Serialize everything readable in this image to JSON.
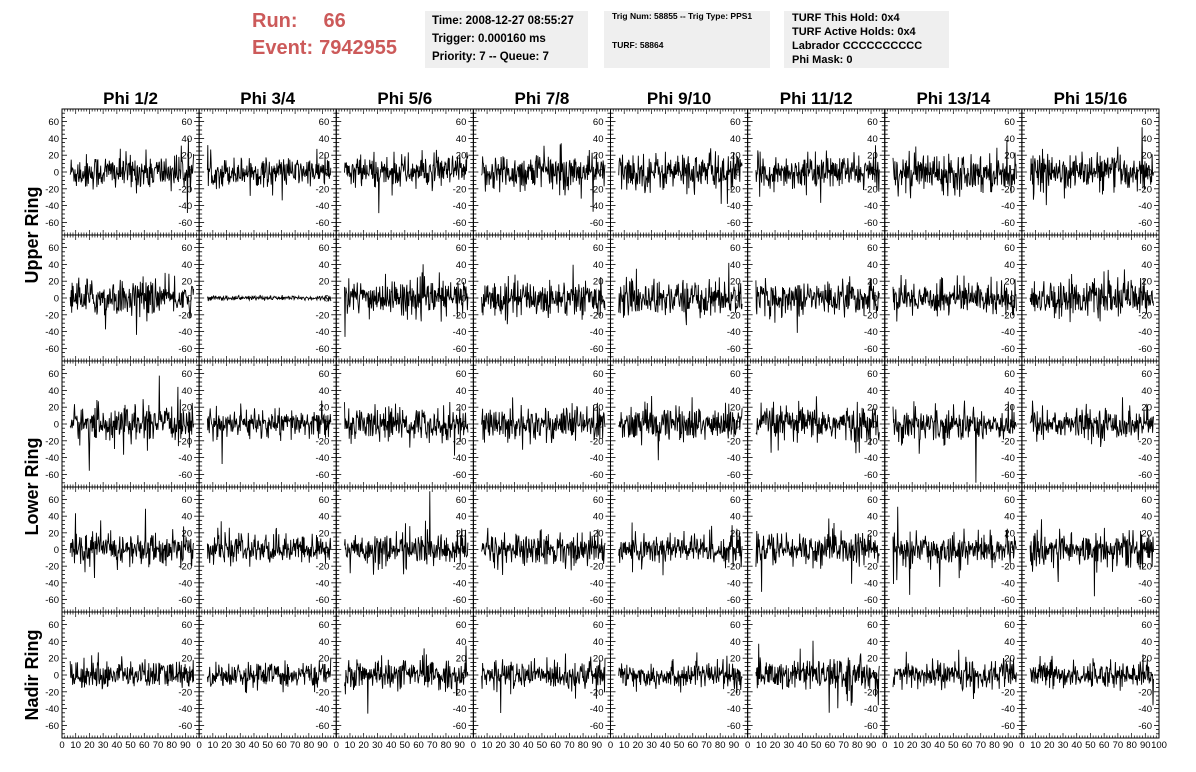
{
  "header": {
    "run_label": "Run:",
    "run_value": "66",
    "event_label": "Event:",
    "event_value": "7942955",
    "run_color": "#cc5a5a",
    "time_line": "Time: 2008-12-27 08:55:27",
    "trigger_line": "Trigger: 0.000160 ms",
    "priority_line": "Priority: 7 -- Queue: 7",
    "trig_line": "Trig Num: 58855 -- Trig Type: PPS1",
    "turf_line": "TURF: 58864",
    "turf_hold_line": "TURF This Hold: 0x4",
    "turf_active_line": "TURF Active Holds: 0x4",
    "labrador_line": "Labrador CCCCCCCCCC",
    "phimask_line": "Phi Mask: 0"
  },
  "chart_data": {
    "type": "line",
    "columns": [
      "Phi 1/2",
      "Phi 3/4",
      "Phi 5/6",
      "Phi 7/8",
      "Phi 9/10",
      "Phi 11/12",
      "Phi 13/14",
      "Phi 15/16"
    ],
    "rows": [
      "Upper Ring",
      "Lower Ring",
      "Nadir Ring"
    ],
    "ylim": [
      -75,
      75
    ],
    "xlim": [
      0,
      100
    ],
    "left_yticks": [
      "60",
      "40",
      "20",
      "0",
      "-20",
      "-40",
      "-60"
    ],
    "right_yticks": [
      "60",
      "40",
      "20",
      "0",
      "-20",
      "-40",
      "-60"
    ],
    "xticks": [
      "0",
      "10",
      "20",
      "30",
      "40",
      "50",
      "60",
      "70",
      "80",
      "90",
      "100"
    ],
    "xtick_last_panel": "100",
    "trace_color": "#000000",
    "panel_amplitudes": [
      [
        15,
        12,
        14,
        16,
        16,
        14,
        16,
        15
      ],
      [
        15,
        2,
        15,
        15,
        15,
        14,
        14,
        15
      ],
      [
        15,
        12,
        14,
        15,
        15,
        15,
        14,
        13
      ],
      [
        14,
        12,
        14,
        14,
        14,
        14,
        13,
        15
      ],
      [
        12,
        10,
        12,
        12,
        11,
        13,
        12,
        11
      ]
    ]
  }
}
